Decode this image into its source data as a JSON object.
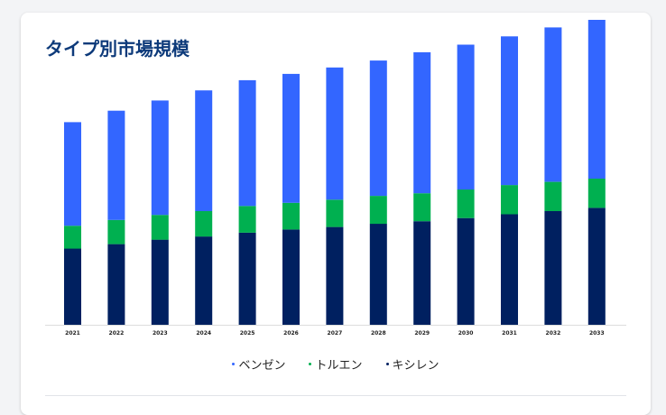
{
  "title": "タイプ別市場規模",
  "colors": {
    "benzene": "#3366ff",
    "toluene": "#00b050",
    "xylene": "#002060",
    "axis": "#dddddd",
    "tick_text": "#222222"
  },
  "chart_data": {
    "type": "bar",
    "stacked": true,
    "categories": [
      "2021",
      "2022",
      "2023",
      "2024",
      "2025",
      "2026",
      "2027",
      "2028",
      "2029",
      "2030",
      "2031",
      "2032",
      "2033"
    ],
    "series": [
      {
        "name": "キシレン",
        "color": "#002060",
        "values": [
          60,
          63.5,
          67,
          69.5,
          72.5,
          75,
          77,
          79.5,
          81.5,
          84,
          87,
          89.5,
          92
        ]
      },
      {
        "name": "トルエン",
        "color": "#00b050",
        "values": [
          18,
          19,
          19.5,
          20,
          21,
          21,
          21.5,
          22,
          22,
          22.5,
          23,
          23,
          23
        ]
      },
      {
        "name": "ベンゼン",
        "color": "#3366ff",
        "values": [
          81.5,
          86,
          90,
          95,
          99,
          101.5,
          104,
          106.5,
          111,
          114,
          117,
          121.5,
          125
        ]
      }
    ],
    "ylim": [
      0,
      240
    ],
    "grid": false,
    "legend_position": "bottom"
  },
  "legend": [
    "ベンゼン",
    "トルエン",
    "キシレン"
  ]
}
